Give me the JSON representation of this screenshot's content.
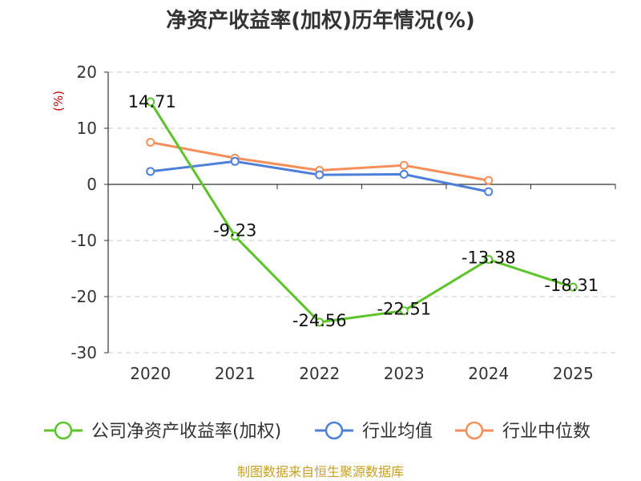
{
  "chart_data": {
    "type": "line",
    "title": "净资产收益率(加权)历年情况(%)",
    "ylabel": "(%)",
    "xlabel": "",
    "categories": [
      "2020",
      "2021",
      "2022",
      "2023",
      "2024",
      "2025"
    ],
    "ylim": [
      -30,
      20
    ],
    "yticks": [
      20,
      10,
      0,
      -10,
      -20,
      -30
    ],
    "grid": true,
    "legend_position": "bottom",
    "series": [
      {
        "name": "公司净资产收益率(加权)",
        "color": "#5cc42a",
        "values": [
          14.71,
          -9.23,
          -24.56,
          -22.51,
          -13.38,
          -18.31
        ],
        "labels": [
          "14.71",
          "-9.23",
          "-24.56",
          "-22.51",
          "-13.38",
          "-18.31"
        ]
      },
      {
        "name": "行业均值",
        "color": "#4e7fd9",
        "values": [
          2.3,
          4.1,
          1.7,
          1.8,
          -1.3,
          null
        ]
      },
      {
        "name": "行业中位数",
        "color": "#f58f5a",
        "values": [
          7.5,
          4.7,
          2.5,
          3.4,
          0.7,
          null
        ]
      }
    ]
  },
  "source": "制图数据来自恒生聚源数据库"
}
